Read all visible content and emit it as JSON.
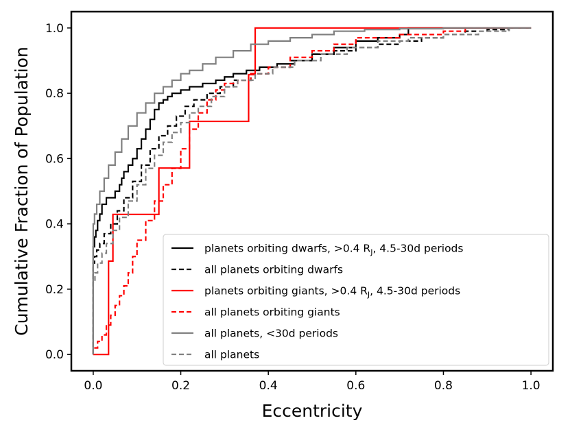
{
  "chart_data": {
    "type": "line",
    "title": "",
    "xlabel": "Eccentricity",
    "ylabel": "Cumulative Fraction of Population",
    "xlim": [
      -0.05,
      1.05
    ],
    "ylim": [
      -0.05,
      1.05
    ],
    "xticks": [
      0.0,
      0.2,
      0.4,
      0.6,
      0.8,
      1.0
    ],
    "xtick_labels": [
      "0.0",
      "0.2",
      "0.4",
      "0.6",
      "0.8",
      "1.0"
    ],
    "yticks": [
      0.0,
      0.2,
      0.4,
      0.6,
      0.8,
      1.0
    ],
    "ytick_labels": [
      "0.0",
      "0.2",
      "0.4",
      "0.6",
      "0.8",
      "1.0"
    ],
    "grid": false,
    "legend_position": "lower-right",
    "series": [
      {
        "name": "planets orbiting dwarfs, > 0.4 R_J, 4.5-30d periods",
        "legend_main": "planets orbiting dwarfs, ",
        "legend_mid": ">0.4 R",
        "legend_sub": "J",
        "legend_tail": ", 4.5-30d periods",
        "color": "#000000",
        "style": "solid",
        "step": true,
        "x": [
          0.0,
          0.0,
          0.003,
          0.006,
          0.01,
          0.015,
          0.02,
          0.03,
          0.05,
          0.06,
          0.065,
          0.07,
          0.08,
          0.09,
          0.1,
          0.11,
          0.12,
          0.13,
          0.14,
          0.15,
          0.16,
          0.17,
          0.18,
          0.2,
          0.22,
          0.25,
          0.28,
          0.3,
          0.32,
          0.35,
          0.38,
          0.42,
          0.46,
          0.5,
          0.55,
          0.6,
          0.65,
          0.7,
          0.72,
          1.0
        ],
        "y": [
          0.0,
          0.33,
          0.36,
          0.38,
          0.41,
          0.43,
          0.46,
          0.48,
          0.5,
          0.52,
          0.54,
          0.56,
          0.58,
          0.6,
          0.63,
          0.66,
          0.69,
          0.72,
          0.75,
          0.77,
          0.78,
          0.79,
          0.8,
          0.81,
          0.82,
          0.83,
          0.84,
          0.85,
          0.86,
          0.87,
          0.88,
          0.89,
          0.9,
          0.92,
          0.94,
          0.96,
          0.97,
          0.98,
          1.0,
          1.0
        ]
      },
      {
        "name": "all planets orbiting dwarfs",
        "legend_main": "all planets orbiting dwarfs",
        "color": "#000000",
        "style": "dashed",
        "step": true,
        "x": [
          0.0,
          0.0,
          0.003,
          0.008,
          0.015,
          0.025,
          0.04,
          0.055,
          0.07,
          0.09,
          0.11,
          0.13,
          0.15,
          0.17,
          0.19,
          0.21,
          0.23,
          0.26,
          0.29,
          0.32,
          0.36,
          0.4,
          0.45,
          0.5,
          0.55,
          0.6,
          0.65,
          0.7,
          0.75,
          0.8,
          0.85,
          0.9,
          0.95,
          1.0
        ],
        "y": [
          0.0,
          0.28,
          0.3,
          0.32,
          0.34,
          0.37,
          0.4,
          0.44,
          0.48,
          0.53,
          0.58,
          0.63,
          0.67,
          0.7,
          0.73,
          0.76,
          0.78,
          0.8,
          0.82,
          0.84,
          0.86,
          0.88,
          0.9,
          0.92,
          0.93,
          0.94,
          0.95,
          0.96,
          0.97,
          0.98,
          0.99,
          0.995,
          1.0,
          1.0
        ]
      },
      {
        "name": "planets orbiting giants, > 0.4 R_J, 4.5-30d periods",
        "legend_main": "planets orbiting giants, ",
        "legend_mid": ">0.4 R",
        "legend_sub": "J",
        "legend_tail": ", 4.5-30d periods",
        "color": "#ff0000",
        "style": "solid",
        "step": true,
        "x": [
          0.0,
          0.035,
          0.045,
          0.05,
          0.15,
          0.22,
          0.355,
          0.365,
          0.37,
          1.0
        ],
        "y": [
          0.0,
          0.286,
          0.429,
          0.429,
          0.571,
          0.714,
          0.857,
          0.857,
          1.0,
          1.0
        ]
      },
      {
        "name": "all planets orbiting giants",
        "legend_main": "all planets orbiting giants",
        "color": "#ff0000",
        "style": "dashed",
        "step": true,
        "x": [
          0.0,
          0.0,
          0.01,
          0.02,
          0.03,
          0.04,
          0.05,
          0.06,
          0.07,
          0.08,
          0.09,
          0.1,
          0.12,
          0.14,
          0.16,
          0.18,
          0.2,
          0.22,
          0.24,
          0.26,
          0.28,
          0.3,
          0.33,
          0.36,
          0.4,
          0.45,
          0.5,
          0.55,
          0.6,
          0.7,
          0.8,
          0.85,
          1.0
        ],
        "y": [
          0.0,
          0.02,
          0.04,
          0.06,
          0.09,
          0.12,
          0.15,
          0.18,
          0.21,
          0.25,
          0.3,
          0.35,
          0.41,
          0.47,
          0.52,
          0.57,
          0.63,
          0.69,
          0.74,
          0.78,
          0.81,
          0.83,
          0.84,
          0.86,
          0.88,
          0.91,
          0.93,
          0.95,
          0.97,
          0.98,
          0.99,
          1.0,
          1.0
        ]
      },
      {
        "name": "all planets, < 30d periods",
        "legend_main": "all planets, ",
        "legend_mid": "<30d periods",
        "color": "#808080",
        "style": "solid",
        "step": true,
        "x": [
          0.0,
          0.0,
          0.003,
          0.008,
          0.015,
          0.025,
          0.035,
          0.05,
          0.065,
          0.08,
          0.1,
          0.12,
          0.14,
          0.16,
          0.18,
          0.2,
          0.22,
          0.25,
          0.28,
          0.32,
          0.36,
          0.4,
          0.45,
          0.5,
          0.55,
          0.62,
          0.7,
          0.8,
          0.9,
          1.0
        ],
        "y": [
          0.0,
          0.4,
          0.43,
          0.46,
          0.5,
          0.54,
          0.58,
          0.62,
          0.66,
          0.7,
          0.74,
          0.77,
          0.8,
          0.82,
          0.84,
          0.86,
          0.87,
          0.89,
          0.91,
          0.93,
          0.95,
          0.96,
          0.97,
          0.98,
          0.99,
          0.995,
          0.998,
          1.0,
          1.0,
          1.0
        ]
      },
      {
        "name": "all planets",
        "legend_main": "all planets",
        "color": "#808080",
        "style": "dashed",
        "step": true,
        "x": [
          0.0,
          0.0,
          0.004,
          0.01,
          0.02,
          0.03,
          0.045,
          0.06,
          0.08,
          0.1,
          0.12,
          0.14,
          0.16,
          0.18,
          0.2,
          0.22,
          0.24,
          0.27,
          0.3,
          0.33,
          0.37,
          0.41,
          0.46,
          0.52,
          0.58,
          0.65,
          0.72,
          0.8,
          0.88,
          0.95,
          1.0
        ],
        "y": [
          0.0,
          0.22,
          0.25,
          0.28,
          0.31,
          0.34,
          0.38,
          0.42,
          0.47,
          0.52,
          0.57,
          0.61,
          0.65,
          0.68,
          0.71,
          0.74,
          0.76,
          0.79,
          0.82,
          0.84,
          0.86,
          0.88,
          0.9,
          0.92,
          0.94,
          0.96,
          0.97,
          0.98,
          0.99,
          1.0,
          1.0
        ]
      }
    ]
  }
}
